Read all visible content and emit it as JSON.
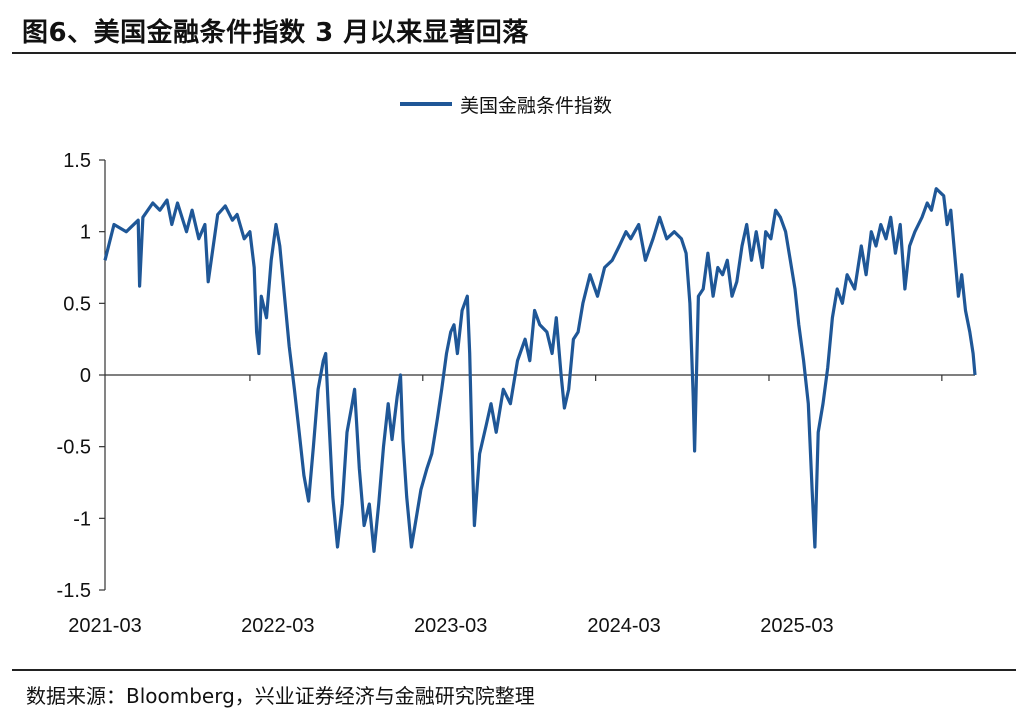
{
  "header": {
    "title": "图6、美国金融条件指数 3 月以来显著回落"
  },
  "footer": {
    "source": "数据来源：Bloomberg，兴业证券经济与金融研究院整理"
  },
  "colors": {
    "series": "#1f5797",
    "axis": "#333333"
  },
  "chart_data": {
    "type": "line",
    "legend": {
      "position": "top-center"
    },
    "series": [
      {
        "name": "美国金融条件指数",
        "points": [
          [
            "2021-03-01",
            0.8
          ],
          [
            "2021-03-20",
            1.05
          ],
          [
            "2021-04-15",
            1.0
          ],
          [
            "2021-05-10",
            1.08
          ],
          [
            "2021-05-13",
            0.62
          ],
          [
            "2021-05-20",
            1.1
          ],
          [
            "2021-06-10",
            1.2
          ],
          [
            "2021-06-25",
            1.15
          ],
          [
            "2021-07-10",
            1.22
          ],
          [
            "2021-07-20",
            1.05
          ],
          [
            "2021-08-01",
            1.2
          ],
          [
            "2021-08-20",
            1.0
          ],
          [
            "2021-09-01",
            1.15
          ],
          [
            "2021-09-15",
            0.95
          ],
          [
            "2021-09-28",
            1.05
          ],
          [
            "2021-10-05",
            0.65
          ],
          [
            "2021-10-25",
            1.12
          ],
          [
            "2021-11-10",
            1.18
          ],
          [
            "2021-11-25",
            1.08
          ],
          [
            "2021-12-05",
            1.12
          ],
          [
            "2021-12-20",
            0.95
          ],
          [
            "2022-01-01",
            1.0
          ],
          [
            "2022-01-10",
            0.75
          ],
          [
            "2022-01-15",
            0.3
          ],
          [
            "2022-01-20",
            0.15
          ],
          [
            "2022-01-25",
            0.55
          ],
          [
            "2022-02-05",
            0.4
          ],
          [
            "2022-02-15",
            0.8
          ],
          [
            "2022-02-25",
            1.05
          ],
          [
            "2022-03-05",
            0.9
          ],
          [
            "2022-03-15",
            0.55
          ],
          [
            "2022-03-25",
            0.2
          ],
          [
            "2022-04-05",
            -0.1
          ],
          [
            "2022-04-15",
            -0.4
          ],
          [
            "2022-04-25",
            -0.7
          ],
          [
            "2022-05-05",
            -0.88
          ],
          [
            "2022-05-15",
            -0.5
          ],
          [
            "2022-05-25",
            -0.1
          ],
          [
            "2022-06-05",
            0.1
          ],
          [
            "2022-06-10",
            0.15
          ],
          [
            "2022-06-15",
            -0.2
          ],
          [
            "2022-06-25",
            -0.85
          ],
          [
            "2022-07-05",
            -1.2
          ],
          [
            "2022-07-15",
            -0.9
          ],
          [
            "2022-07-25",
            -0.4
          ],
          [
            "2022-08-05",
            -0.2
          ],
          [
            "2022-08-10",
            -0.1
          ],
          [
            "2022-08-20",
            -0.65
          ],
          [
            "2022-08-30",
            -1.05
          ],
          [
            "2022-09-10",
            -0.9
          ],
          [
            "2022-09-20",
            -1.23
          ],
          [
            "2022-09-30",
            -0.9
          ],
          [
            "2022-10-10",
            -0.5
          ],
          [
            "2022-10-20",
            -0.2
          ],
          [
            "2022-10-28",
            -0.45
          ],
          [
            "2022-11-08",
            -0.15
          ],
          [
            "2022-11-15",
            0.0
          ],
          [
            "2022-11-20",
            -0.45
          ],
          [
            "2022-11-28",
            -0.85
          ],
          [
            "2022-12-08",
            -1.2
          ],
          [
            "2022-12-18",
            -1.0
          ],
          [
            "2022-12-28",
            -0.8
          ],
          [
            "2023-01-10",
            -0.65
          ],
          [
            "2023-01-20",
            -0.55
          ],
          [
            "2023-02-01",
            -0.3
          ],
          [
            "2023-02-10",
            -0.1
          ],
          [
            "2023-02-20",
            0.15
          ],
          [
            "2023-03-01",
            0.3
          ],
          [
            "2023-03-08",
            0.35
          ],
          [
            "2023-03-15",
            0.15
          ],
          [
            "2023-03-25",
            0.45
          ],
          [
            "2023-04-05",
            0.55
          ],
          [
            "2023-04-10",
            0.15
          ],
          [
            "2023-04-15",
            -0.5
          ],
          [
            "2023-04-20",
            -1.05
          ],
          [
            "2023-05-01",
            -0.55
          ],
          [
            "2023-05-15",
            -0.35
          ],
          [
            "2023-05-25",
            -0.2
          ],
          [
            "2023-06-05",
            -0.4
          ],
          [
            "2023-06-20",
            -0.1
          ],
          [
            "2023-07-05",
            -0.2
          ],
          [
            "2023-07-20",
            0.1
          ],
          [
            "2023-08-05",
            0.25
          ],
          [
            "2023-08-15",
            0.1
          ],
          [
            "2023-08-25",
            0.45
          ],
          [
            "2023-09-05",
            0.35
          ],
          [
            "2023-09-20",
            0.3
          ],
          [
            "2023-10-01",
            0.15
          ],
          [
            "2023-10-10",
            0.4
          ],
          [
            "2023-10-20",
            0.0
          ],
          [
            "2023-10-27",
            -0.23
          ],
          [
            "2023-11-05",
            -0.1
          ],
          [
            "2023-11-15",
            0.25
          ],
          [
            "2023-11-25",
            0.3
          ],
          [
            "2023-12-05",
            0.5
          ],
          [
            "2023-12-20",
            0.7
          ],
          [
            "2024-01-05",
            0.55
          ],
          [
            "2024-01-20",
            0.75
          ],
          [
            "2024-02-05",
            0.8
          ],
          [
            "2024-02-20",
            0.9
          ],
          [
            "2024-03-05",
            1.0
          ],
          [
            "2024-03-15",
            0.95
          ],
          [
            "2024-04-01",
            1.05
          ],
          [
            "2024-04-15",
            0.8
          ],
          [
            "2024-05-01",
            0.95
          ],
          [
            "2024-05-15",
            1.1
          ],
          [
            "2024-05-30",
            0.95
          ],
          [
            "2024-06-15",
            1.0
          ],
          [
            "2024-06-30",
            0.95
          ],
          [
            "2024-07-10",
            0.85
          ],
          [
            "2024-07-18",
            0.5
          ],
          [
            "2024-07-25",
            -0.15
          ],
          [
            "2024-07-28",
            -0.53
          ],
          [
            "2024-08-05",
            0.55
          ],
          [
            "2024-08-15",
            0.6
          ],
          [
            "2024-08-25",
            0.85
          ],
          [
            "2024-09-05",
            0.55
          ],
          [
            "2024-09-15",
            0.75
          ],
          [
            "2024-09-25",
            0.7
          ],
          [
            "2024-10-05",
            0.8
          ],
          [
            "2024-10-15",
            0.55
          ],
          [
            "2024-10-25",
            0.65
          ],
          [
            "2024-11-05",
            0.9
          ],
          [
            "2024-11-15",
            1.05
          ],
          [
            "2024-11-25",
            0.8
          ],
          [
            "2024-12-05",
            1.0
          ],
          [
            "2024-12-18",
            0.75
          ],
          [
            "2024-12-25",
            1.0
          ],
          [
            "2025-01-05",
            0.95
          ],
          [
            "2025-01-15",
            1.15
          ],
          [
            "2025-01-25",
            1.1
          ],
          [
            "2025-02-05",
            1.0
          ],
          [
            "2025-02-15",
            0.8
          ],
          [
            "2025-02-25",
            0.6
          ],
          [
            "2025-03-05",
            0.35
          ],
          [
            "2025-03-15",
            0.1
          ],
          [
            "2025-03-25",
            -0.2
          ],
          [
            "2025-04-02",
            -0.8
          ],
          [
            "2025-04-08",
            -1.2
          ],
          [
            "2025-04-15",
            -0.4
          ],
          [
            "2025-04-25",
            -0.2
          ],
          [
            "2025-05-05",
            0.05
          ],
          [
            "2025-05-15",
            0.4
          ],
          [
            "2025-05-25",
            0.6
          ],
          [
            "2025-06-05",
            0.5
          ],
          [
            "2025-06-15",
            0.7
          ],
          [
            "2025-07-01",
            0.6
          ],
          [
            "2025-07-15",
            0.9
          ],
          [
            "2025-07-25",
            0.7
          ],
          [
            "2025-08-05",
            1.0
          ],
          [
            "2025-08-15",
            0.9
          ],
          [
            "2025-08-25",
            1.05
          ],
          [
            "2025-09-05",
            0.95
          ],
          [
            "2025-09-15",
            1.1
          ],
          [
            "2025-09-25",
            0.85
          ],
          [
            "2025-10-05",
            1.05
          ],
          [
            "2025-10-15",
            0.6
          ],
          [
            "2025-10-25",
            0.9
          ],
          [
            "2025-11-05",
            1.0
          ],
          [
            "2025-11-20",
            1.1
          ],
          [
            "2025-12-01",
            1.2
          ],
          [
            "2025-12-10",
            1.15
          ],
          [
            "2025-12-20",
            1.3
          ],
          [
            "2026-01-05",
            1.25
          ],
          [
            "2026-01-12",
            1.05
          ],
          [
            "2026-01-20",
            1.15
          ],
          [
            "2026-01-28",
            0.85
          ],
          [
            "2026-02-05",
            0.55
          ],
          [
            "2026-02-12",
            0.7
          ],
          [
            "2026-02-20",
            0.45
          ],
          [
            "2026-03-01",
            0.3
          ],
          [
            "2026-03-08",
            0.15
          ],
          [
            "2026-03-12",
            0.0
          ]
        ]
      }
    ],
    "y_axis": {
      "min": -1.5,
      "max": 1.5,
      "ticks": [
        "1.5",
        "1",
        "0.5",
        "0",
        "-0.5",
        "-1",
        "-1.5"
      ]
    },
    "x_axis": {
      "tick_labels": [
        "2021-03",
        "2022-03",
        "2023-03",
        "2024-03",
        "2025-03"
      ]
    },
    "grid": false
  }
}
